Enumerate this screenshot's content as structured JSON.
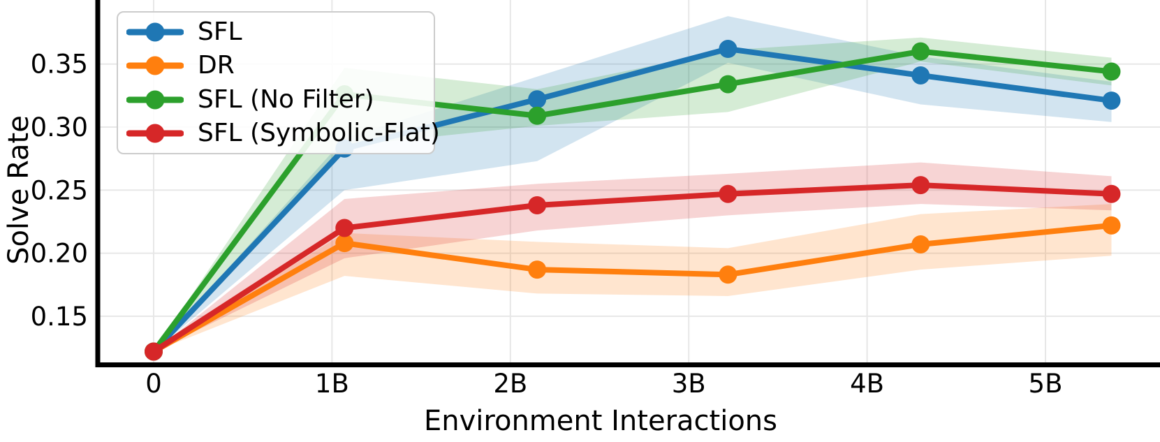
{
  "figure": {
    "background": "#ffffff",
    "grid_color": "#e7e7e7",
    "spine_color": "#000000",
    "tick_label_color": "#000000"
  },
  "chart_data": {
    "type": "line",
    "title": "",
    "xlabel": "Environment Interactions",
    "ylabel": "Solve Rate",
    "grid": true,
    "legend_position": "upper-left",
    "x_unit": "billions",
    "xlim": [
      -0.31,
      5.64
    ],
    "ylim": [
      0.113,
      0.401
    ],
    "x_ticks": [
      {
        "label": "0",
        "value": 0
      },
      {
        "label": "1B",
        "value": 1
      },
      {
        "label": "2B",
        "value": 2
      },
      {
        "label": "3B",
        "value": 3
      },
      {
        "label": "4B",
        "value": 4
      },
      {
        "label": "5B",
        "value": 5
      }
    ],
    "y_ticks": [
      {
        "label": "0.15",
        "value": 0.15
      },
      {
        "label": "0.20",
        "value": 0.2
      },
      {
        "label": "0.25",
        "value": 0.25
      },
      {
        "label": "0.30",
        "value": 0.3
      },
      {
        "label": "0.35",
        "value": 0.35
      }
    ],
    "x": [
      0,
      1.07,
      2.15,
      3.22,
      4.3,
      5.37
    ],
    "series": [
      {
        "name": "SFL",
        "color": "#1f77b4",
        "values": [
          0.122,
          0.283,
          0.322,
          0.362,
          0.341,
          0.321
        ],
        "band_low": [
          0.122,
          0.25,
          0.273,
          0.351,
          0.318,
          0.304
        ],
        "band_high": [
          0.122,
          0.291,
          0.34,
          0.388,
          0.356,
          0.336
        ]
      },
      {
        "name": "DR",
        "color": "#ff7f0e",
        "values": [
          0.122,
          0.208,
          0.187,
          0.183,
          0.207,
          0.222
        ],
        "band_low": [
          0.122,
          0.182,
          0.168,
          0.166,
          0.187,
          0.198
        ],
        "band_high": [
          0.122,
          0.216,
          0.209,
          0.204,
          0.231,
          0.239
        ]
      },
      {
        "name": "SFL (No Filter)",
        "color": "#2ca02c",
        "values": [
          0.122,
          0.326,
          0.309,
          0.334,
          0.36,
          0.344
        ],
        "band_low": [
          0.122,
          0.285,
          0.301,
          0.312,
          0.352,
          0.333
        ],
        "band_high": [
          0.122,
          0.347,
          0.33,
          0.361,
          0.371,
          0.355
        ]
      },
      {
        "name": "SFL (Symbolic-Flat)",
        "color": "#d62728",
        "values": [
          0.122,
          0.22,
          0.238,
          0.247,
          0.254,
          0.247
        ],
        "band_low": [
          0.122,
          0.196,
          0.218,
          0.23,
          0.239,
          0.234
        ],
        "band_high": [
          0.122,
          0.243,
          0.255,
          0.263,
          0.272,
          0.261
        ]
      }
    ]
  }
}
